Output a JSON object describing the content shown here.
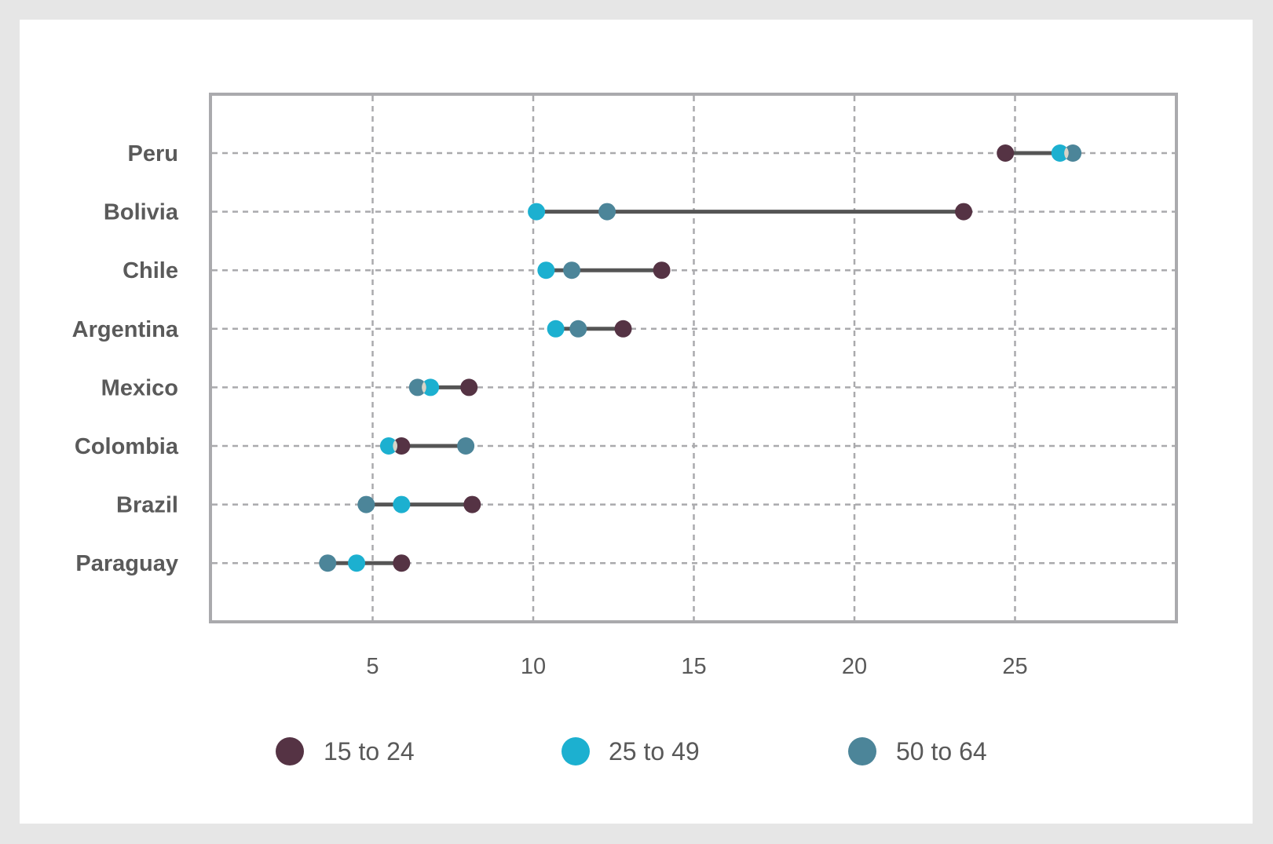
{
  "chart_data": {
    "type": "dumbbell",
    "title": "",
    "xlabel": "",
    "ylabel": "",
    "xlim": [
      0,
      30
    ],
    "x_ticks": [
      5,
      10,
      15,
      20,
      25
    ],
    "x_tick_labels": [
      "5",
      "10",
      "15",
      "20",
      "25"
    ],
    "grid": true,
    "legend_position": "bottom",
    "categories": [
      "Peru",
      "Bolivia",
      "Chile",
      "Argentina",
      "Mexico",
      "Colombia",
      "Brazil",
      "Paraguay"
    ],
    "series": [
      {
        "name": "15 to 24",
        "color": "#553344",
        "values": [
          24.7,
          23.4,
          14.0,
          12.8,
          8.0,
          5.9,
          8.1,
          5.9
        ]
      },
      {
        "name": "25 to 49",
        "color": "#1cb0d0",
        "values": [
          26.4,
          10.1,
          10.4,
          10.7,
          6.8,
          5.5,
          5.9,
          4.5
        ]
      },
      {
        "name": "50 to 64",
        "color": "#4c8599",
        "values": [
          26.8,
          12.3,
          11.2,
          11.4,
          6.4,
          7.9,
          4.8,
          3.6
        ]
      }
    ]
  },
  "legend": {
    "items": [
      {
        "label": "15 to 24",
        "color": "#553344"
      },
      {
        "label": "25 to 49",
        "color": "#1cb0d0"
      },
      {
        "label": "50 to 64",
        "color": "#4c8599"
      }
    ]
  },
  "colors": {
    "background": "#e6e6e6",
    "card": "#ffffff",
    "frame": "#aaaaad",
    "grid": "#aaaaad",
    "connector": "#555555",
    "text": "#595959",
    "overlap": "#d8d4c8"
  }
}
